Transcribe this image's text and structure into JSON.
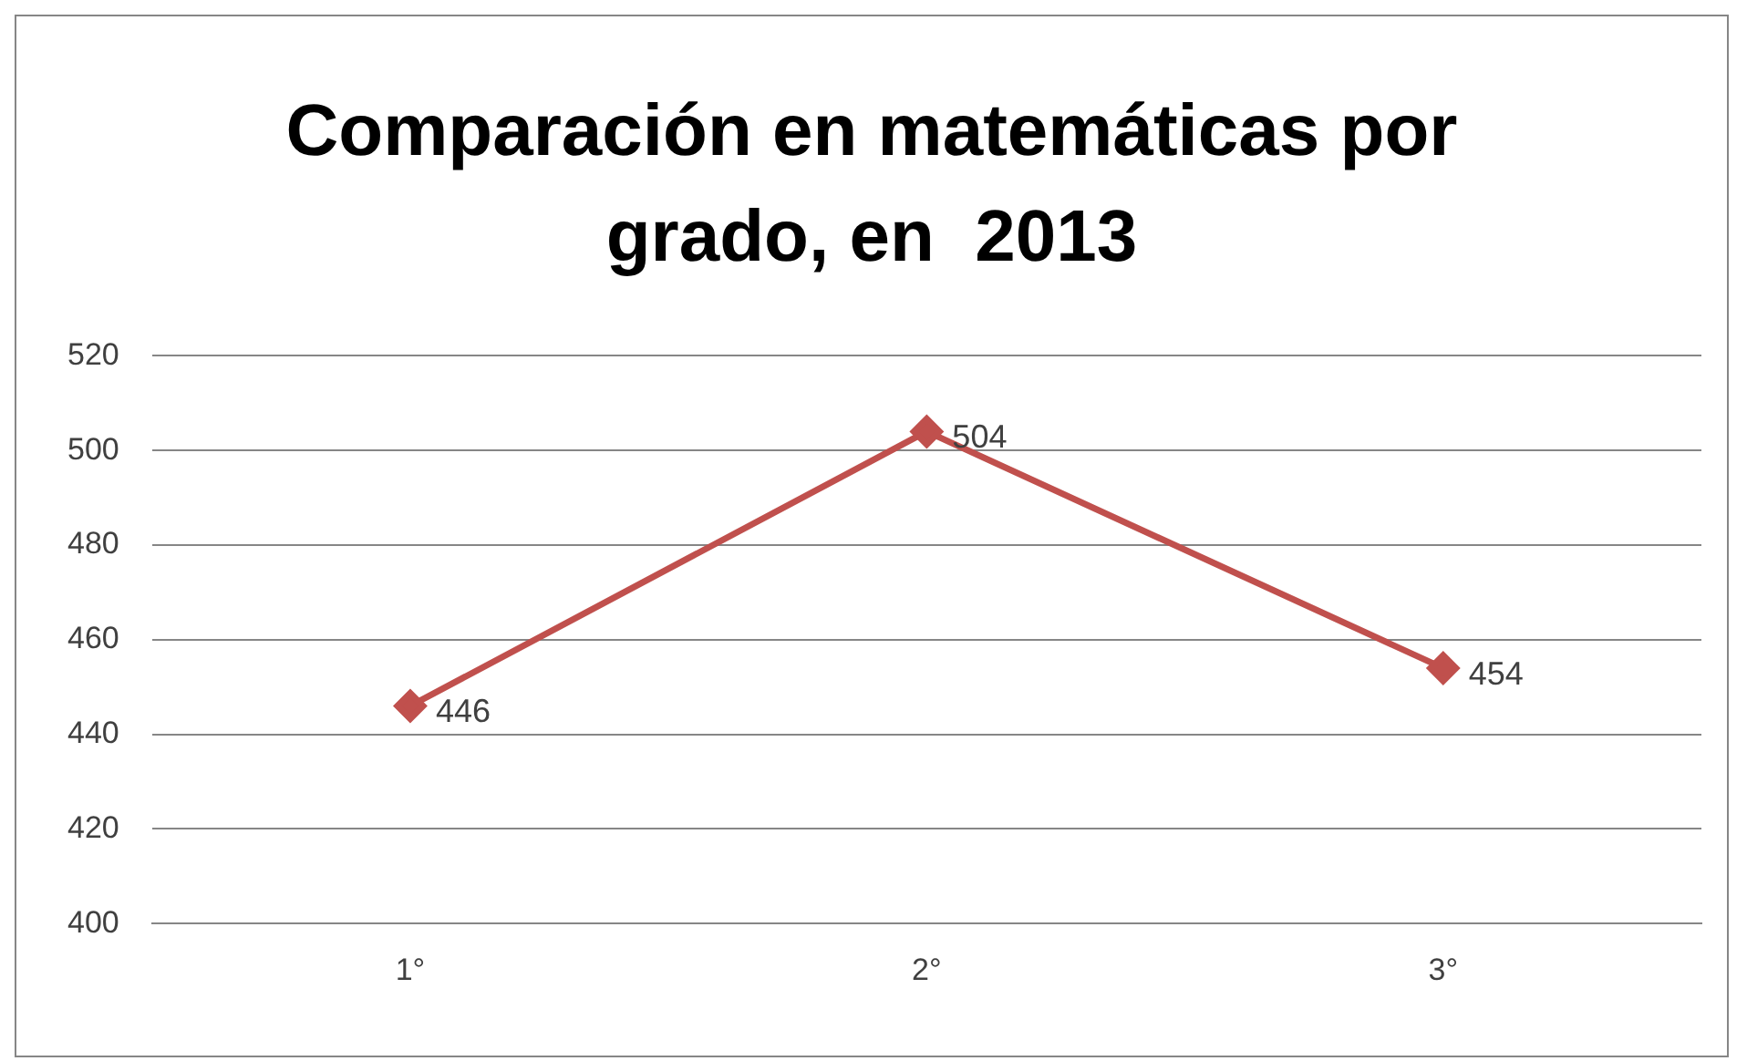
{
  "chart_data": {
    "type": "line",
    "title": "Comparación en matemáticas por grado, en  2013",
    "categories": [
      "1°",
      "2°",
      "3°"
    ],
    "series": [
      {
        "color": "#c0504d",
        "values": [
          446,
          504,
          454
        ]
      }
    ],
    "ylim": [
      400,
      520
    ],
    "yticks": [
      400,
      420,
      440,
      460,
      480,
      500,
      520
    ],
    "grid": "y",
    "legend": false,
    "marker": "diamond",
    "line_style": "solid",
    "data_labels": true
  }
}
